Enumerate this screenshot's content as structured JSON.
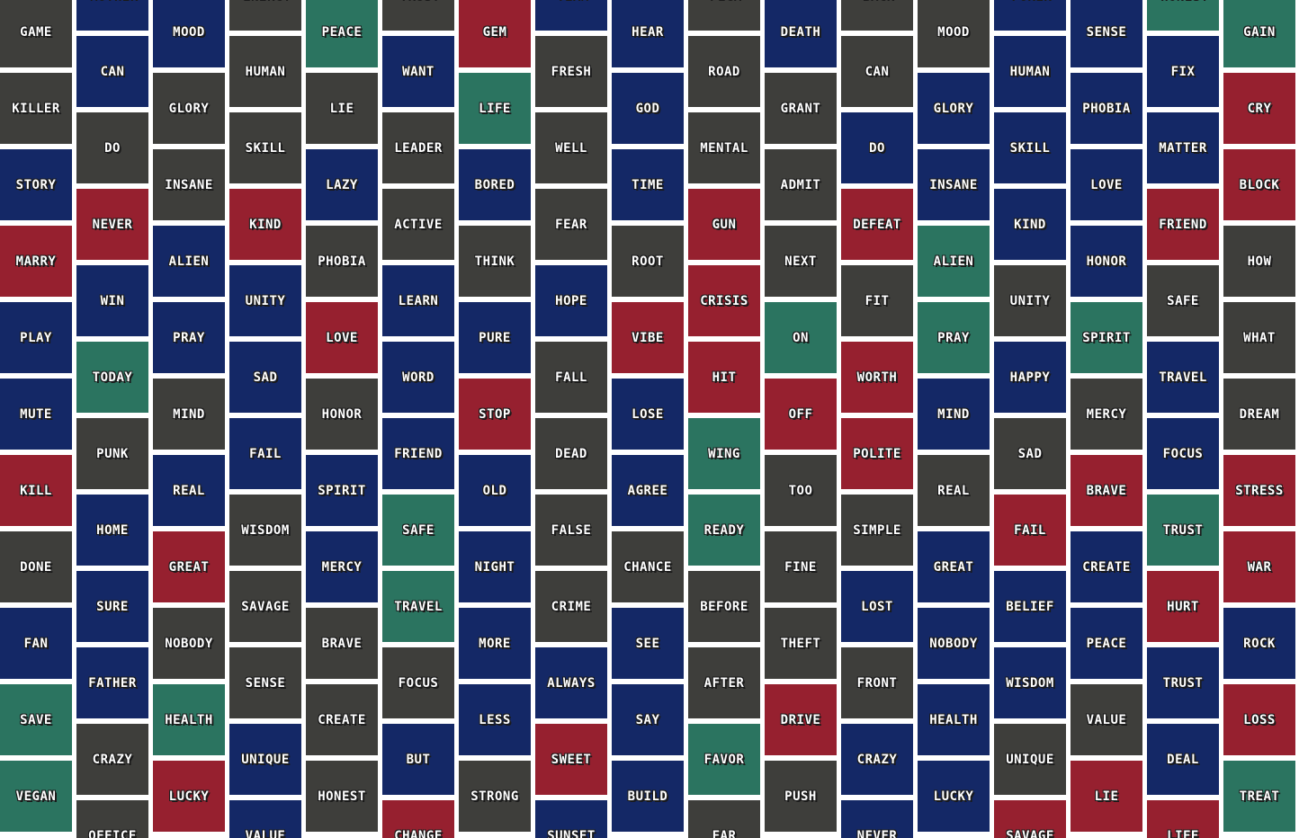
{
  "palette": {
    "gray": "#3e3e3b",
    "blue": "#142866",
    "red": "#96202f",
    "green": "#2b7460"
  },
  "columns": [
    {
      "words": [
        [
          "GAME",
          "gray"
        ],
        [
          "KILLER",
          "gray"
        ],
        [
          "STORY",
          "blue"
        ],
        [
          "MARRY",
          "red"
        ],
        [
          "PLAY",
          "blue"
        ],
        [
          "MUTE",
          "blue"
        ],
        [
          "KILL",
          "red"
        ],
        [
          "DONE",
          "gray"
        ],
        [
          "FAN",
          "blue"
        ],
        [
          "SAVE",
          "green"
        ],
        [
          "VEGAN",
          "green"
        ]
      ]
    },
    {
      "words": [
        [
          "MOTHER",
          "blue"
        ],
        [
          "CAN",
          "blue"
        ],
        [
          "DO",
          "gray"
        ],
        [
          "NEVER",
          "red"
        ],
        [
          "WIN",
          "blue"
        ],
        [
          "TODAY",
          "green"
        ],
        [
          "PUNK",
          "gray"
        ],
        [
          "HOME",
          "blue"
        ],
        [
          "SURE",
          "blue"
        ],
        [
          "FATHER",
          "blue"
        ],
        [
          "CRAZY",
          "gray"
        ],
        [
          "OFFICE",
          "gray"
        ]
      ]
    },
    {
      "words": [
        [
          "MOOD",
          "blue"
        ],
        [
          "GLORY",
          "gray"
        ],
        [
          "INSANE",
          "gray"
        ],
        [
          "ALIEN",
          "blue"
        ],
        [
          "PRAY",
          "blue"
        ],
        [
          "MIND",
          "gray"
        ],
        [
          "REAL",
          "blue"
        ],
        [
          "GREAT",
          "red"
        ],
        [
          "NOBODY",
          "gray"
        ],
        [
          "HEALTH",
          "green"
        ],
        [
          "LUCKY",
          "red"
        ]
      ]
    },
    {
      "words": [
        [
          "ENERGY",
          "gray"
        ],
        [
          "HUMAN",
          "gray"
        ],
        [
          "SKILL",
          "gray"
        ],
        [
          "KIND",
          "red"
        ],
        [
          "UNITY",
          "blue"
        ],
        [
          "SAD",
          "blue"
        ],
        [
          "FAIL",
          "blue"
        ],
        [
          "WISDOM",
          "gray"
        ],
        [
          "SAVAGE",
          "gray"
        ],
        [
          "SENSE",
          "gray"
        ],
        [
          "UNIQUE",
          "blue"
        ],
        [
          "VALUE",
          "blue"
        ]
      ]
    },
    {
      "words": [
        [
          "PEACE",
          "green"
        ],
        [
          "LIE",
          "gray"
        ],
        [
          "LAZY",
          "blue"
        ],
        [
          "PHOBIA",
          "gray"
        ],
        [
          "LOVE",
          "red"
        ],
        [
          "HONOR",
          "gray"
        ],
        [
          "SPIRIT",
          "blue"
        ],
        [
          "MERCY",
          "blue"
        ],
        [
          "BRAVE",
          "gray"
        ],
        [
          "CREATE",
          "gray"
        ],
        [
          "HONEST",
          "gray"
        ]
      ]
    },
    {
      "words": [
        [
          "TRUST",
          "gray"
        ],
        [
          "WANT",
          "blue"
        ],
        [
          "LEADER",
          "gray"
        ],
        [
          "ACTIVE",
          "gray"
        ],
        [
          "LEARN",
          "blue"
        ],
        [
          "WORD",
          "blue"
        ],
        [
          "FRIEND",
          "blue"
        ],
        [
          "SAFE",
          "green"
        ],
        [
          "TRAVEL",
          "green"
        ],
        [
          "FOCUS",
          "gray"
        ],
        [
          "BUT",
          "blue"
        ],
        [
          "CHANGE",
          "red"
        ]
      ]
    },
    {
      "words": [
        [
          "GEM",
          "red"
        ],
        [
          "LIFE",
          "green"
        ],
        [
          "BORED",
          "blue"
        ],
        [
          "THINK",
          "gray"
        ],
        [
          "PURE",
          "blue"
        ],
        [
          "STOP",
          "red"
        ],
        [
          "OLD",
          "blue"
        ],
        [
          "NIGHT",
          "blue"
        ],
        [
          "MORE",
          "blue"
        ],
        [
          "LESS",
          "blue"
        ],
        [
          "STRONG",
          "gray"
        ]
      ]
    },
    {
      "words": [
        [
          "TEAM",
          "blue"
        ],
        [
          "FRESH",
          "gray"
        ],
        [
          "WELL",
          "gray"
        ],
        [
          "FEAR",
          "gray"
        ],
        [
          "HOPE",
          "blue"
        ],
        [
          "FALL",
          "gray"
        ],
        [
          "DEAD",
          "gray"
        ],
        [
          "FALSE",
          "gray"
        ],
        [
          "CRIME",
          "gray"
        ],
        [
          "ALWAYS",
          "blue"
        ],
        [
          "SWEET",
          "red"
        ],
        [
          "SUNSET",
          "blue"
        ]
      ]
    },
    {
      "words": [
        [
          "HEAR",
          "blue"
        ],
        [
          "GOD",
          "blue"
        ],
        [
          "TIME",
          "blue"
        ],
        [
          "ROOT",
          "gray"
        ],
        [
          "VIBE",
          "red"
        ],
        [
          "LOSE",
          "blue"
        ],
        [
          "AGREE",
          "blue"
        ],
        [
          "CHANCE",
          "gray"
        ],
        [
          "SEE",
          "blue"
        ],
        [
          "SAY",
          "blue"
        ],
        [
          "BUILD",
          "blue"
        ]
      ]
    },
    {
      "words": [
        [
          "PEGA",
          "gray"
        ],
        [
          "ROAD",
          "gray"
        ],
        [
          "MENTAL",
          "gray"
        ],
        [
          "GUN",
          "red"
        ],
        [
          "CRISIS",
          "red"
        ],
        [
          "HIT",
          "red"
        ],
        [
          "WING",
          "green"
        ],
        [
          "READY",
          "green"
        ],
        [
          "BEFORE",
          "gray"
        ],
        [
          "AFTER",
          "gray"
        ],
        [
          "FAVOR",
          "green"
        ],
        [
          "FAR",
          "gray"
        ]
      ]
    },
    {
      "words": [
        [
          "DEATH",
          "blue"
        ],
        [
          "GRANT",
          "gray"
        ],
        [
          "ADMIT",
          "gray"
        ],
        [
          "NEXT",
          "gray"
        ],
        [
          "ON",
          "green"
        ],
        [
          "OFF",
          "red"
        ],
        [
          "TOO",
          "gray"
        ],
        [
          "FINE",
          "gray"
        ],
        [
          "THEFT",
          "gray"
        ],
        [
          "DRIVE",
          "red"
        ],
        [
          "PUSH",
          "gray"
        ]
      ]
    },
    {
      "words": [
        [
          "BACK",
          "gray"
        ],
        [
          "CAN",
          "gray"
        ],
        [
          "DO",
          "blue"
        ],
        [
          "DEFEAT",
          "red"
        ],
        [
          "FIT",
          "gray"
        ],
        [
          "WORTH",
          "red"
        ],
        [
          "POLITE",
          "red"
        ],
        [
          "SIMPLE",
          "gray"
        ],
        [
          "LOST",
          "blue"
        ],
        [
          "FRONT",
          "gray"
        ],
        [
          "CRAZY",
          "blue"
        ],
        [
          "NEVER",
          "blue"
        ]
      ]
    },
    {
      "words": [
        [
          "MOOD",
          "gray"
        ],
        [
          "GLORY",
          "blue"
        ],
        [
          "INSANE",
          "blue"
        ],
        [
          "ALIEN",
          "green"
        ],
        [
          "PRAY",
          "green"
        ],
        [
          "MIND",
          "blue"
        ],
        [
          "REAL",
          "gray"
        ],
        [
          "GREAT",
          "blue"
        ],
        [
          "NOBODY",
          "blue"
        ],
        [
          "HEALTH",
          "blue"
        ],
        [
          "LUCKY",
          "blue"
        ]
      ]
    },
    {
      "words": [
        [
          "POKER",
          "blue"
        ],
        [
          "HUMAN",
          "blue"
        ],
        [
          "SKILL",
          "blue"
        ],
        [
          "KIND",
          "blue"
        ],
        [
          "UNITY",
          "gray"
        ],
        [
          "HAPPY",
          "blue"
        ],
        [
          "SAD",
          "gray"
        ],
        [
          "FAIL",
          "red"
        ],
        [
          "BELIEF",
          "blue"
        ],
        [
          "WISDOM",
          "blue"
        ],
        [
          "UNIQUE",
          "gray"
        ],
        [
          "SAVAGE",
          "red"
        ]
      ]
    },
    {
      "words": [
        [
          "SENSE",
          "blue"
        ],
        [
          "PHOBIA",
          "blue"
        ],
        [
          "LOVE",
          "blue"
        ],
        [
          "HONOR",
          "blue"
        ],
        [
          "SPIRIT",
          "green"
        ],
        [
          "MERCY",
          "gray"
        ],
        [
          "BRAVE",
          "red"
        ],
        [
          "CREATE",
          "blue"
        ],
        [
          "PEACE",
          "blue"
        ],
        [
          "VALUE",
          "gray"
        ],
        [
          "LIE",
          "red"
        ]
      ]
    },
    {
      "words": [
        [
          "HONEST",
          "green"
        ],
        [
          "FIX",
          "blue"
        ],
        [
          "MATTER",
          "blue"
        ],
        [
          "FRIEND",
          "red"
        ],
        [
          "SAFE",
          "gray"
        ],
        [
          "TRAVEL",
          "blue"
        ],
        [
          "FOCUS",
          "blue"
        ],
        [
          "TRUST",
          "green"
        ],
        [
          "HURT",
          "red"
        ],
        [
          "TRUST",
          "blue"
        ],
        [
          "DEAL",
          "blue"
        ],
        [
          "LIFE",
          "red"
        ]
      ]
    },
    {
      "words": [
        [
          "GAIN",
          "green"
        ],
        [
          "CRY",
          "red"
        ],
        [
          "BLOCK",
          "red"
        ],
        [
          "HOW",
          "gray"
        ],
        [
          "WHAT",
          "gray"
        ],
        [
          "DREAM",
          "gray"
        ],
        [
          "STRESS",
          "red"
        ],
        [
          "WAR",
          "red"
        ],
        [
          "ROCK",
          "blue"
        ],
        [
          "LOSS",
          "red"
        ],
        [
          "TREAT",
          "green"
        ]
      ]
    }
  ]
}
